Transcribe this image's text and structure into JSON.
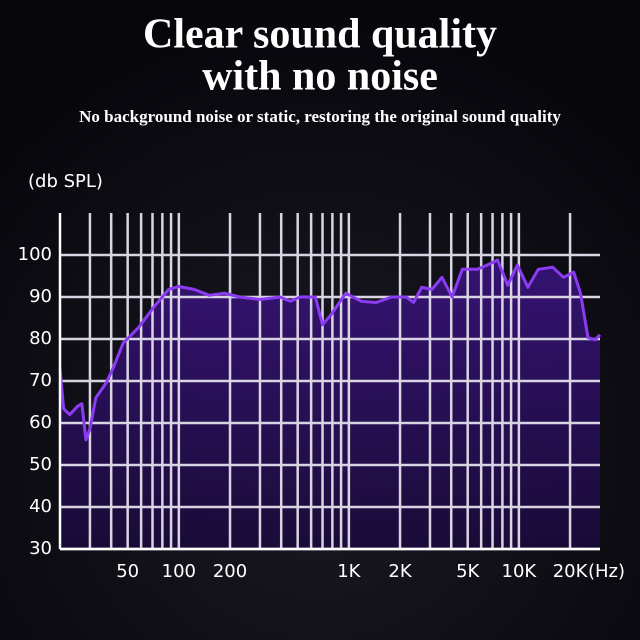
{
  "chart_data": {
    "type": "line",
    "title_lines": [
      "Clear sound quality",
      "with no noise"
    ],
    "subtitle": "No background noise or static, restoring the original sound quality",
    "y_label": "(db SPL)",
    "x_label": "(Hz)",
    "x_log": true,
    "xlim": [
      20,
      30000
    ],
    "ylim": [
      30,
      110
    ],
    "xticks": [
      50,
      100,
      200,
      {
        "value": 1000,
        "label": "1K"
      },
      {
        "value": 2000,
        "label": "2K"
      },
      {
        "value": 5000,
        "label": "5K"
      },
      {
        "value": 10000,
        "label": "10K"
      },
      {
        "value": 20000,
        "label": "20K"
      }
    ],
    "x_minor_ticks": [
      30,
      40,
      60,
      70,
      80,
      90,
      300,
      400,
      500,
      600,
      700,
      800,
      900,
      3000,
      4000,
      6000,
      7000,
      8000,
      9000
    ],
    "yticks": [
      30,
      40,
      50,
      60,
      70,
      80,
      90,
      100
    ],
    "grid": true,
    "series": [
      {
        "name": "Frequency response",
        "color": "#8b3cf2",
        "x": [
          20,
          21,
          22.8,
          25.4,
          26.9,
          28.4,
          30,
          32.5,
          37.3,
          41,
          47,
          57.8,
          71,
          87,
          100,
          123,
          151,
          185,
          228,
          299,
          394,
          452,
          518,
          636,
          700,
          780,
          960,
          1180,
          1450,
          1780,
          2180,
          2400,
          2680,
          3080,
          3530,
          4050,
          4650,
          5700,
          6500,
          7500,
          8600,
          9800,
          11300,
          13000,
          15800,
          18300,
          21000,
          23000,
          25500,
          28000,
          30000
        ],
        "values": [
          73,
          63.4,
          62,
          64,
          64.6,
          56,
          58.6,
          66,
          69.5,
          73,
          79,
          82.7,
          87.5,
          91.8,
          92.5,
          91.8,
          90.4,
          90.9,
          90,
          89.4,
          90,
          89,
          90,
          90,
          83.4,
          85.6,
          90.9,
          89,
          88.7,
          90,
          90,
          88.7,
          92.3,
          91.8,
          94.7,
          90,
          96.6,
          96.6,
          97.6,
          98.8,
          92.8,
          97.6,
          92.3,
          96.6,
          97.1,
          94.7,
          95.9,
          91,
          80.3,
          79.8,
          81
        ]
      }
    ]
  }
}
